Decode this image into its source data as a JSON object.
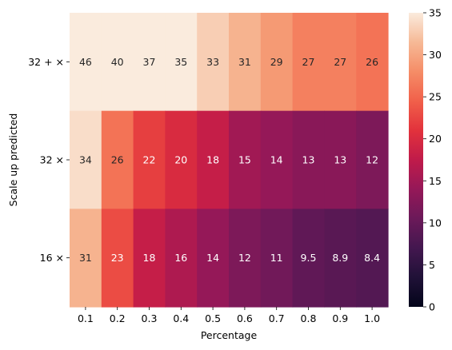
{
  "chart_data": {
    "type": "heatmap",
    "xlabel": "Percentage",
    "ylabel": "Scale up predicted",
    "x_categories": [
      "0.1",
      "0.2",
      "0.3",
      "0.4",
      "0.5",
      "0.6",
      "0.7",
      "0.8",
      "0.9",
      "1.0"
    ],
    "y_categories": [
      "32 + ×",
      "32 ×",
      "16 ×"
    ],
    "values": [
      [
        46,
        40,
        37,
        35,
        33,
        31,
        29,
        27,
        27,
        26
      ],
      [
        34,
        26,
        22,
        20,
        18,
        15,
        14,
        13,
        13,
        12
      ],
      [
        31,
        23,
        18,
        16,
        14,
        12,
        11,
        9.5,
        8.9,
        8.4
      ]
    ],
    "cell_labels": [
      [
        "46",
        "40",
        "37",
        "35",
        "33",
        "31",
        "29",
        "27",
        "27",
        "26"
      ],
      [
        "34",
        "26",
        "22",
        "20",
        "18",
        "15",
        "14",
        "13",
        "13",
        "12"
      ],
      [
        "31",
        "23",
        "18",
        "16",
        "14",
        "12",
        "11",
        "9.5",
        "8.9",
        "8.4"
      ]
    ],
    "colorbar": {
      "vmin": 0,
      "vmax": 35,
      "ticks": [
        "0",
        "5",
        "10",
        "15",
        "20",
        "25",
        "30",
        "35"
      ],
      "colormap": "rocket"
    }
  }
}
